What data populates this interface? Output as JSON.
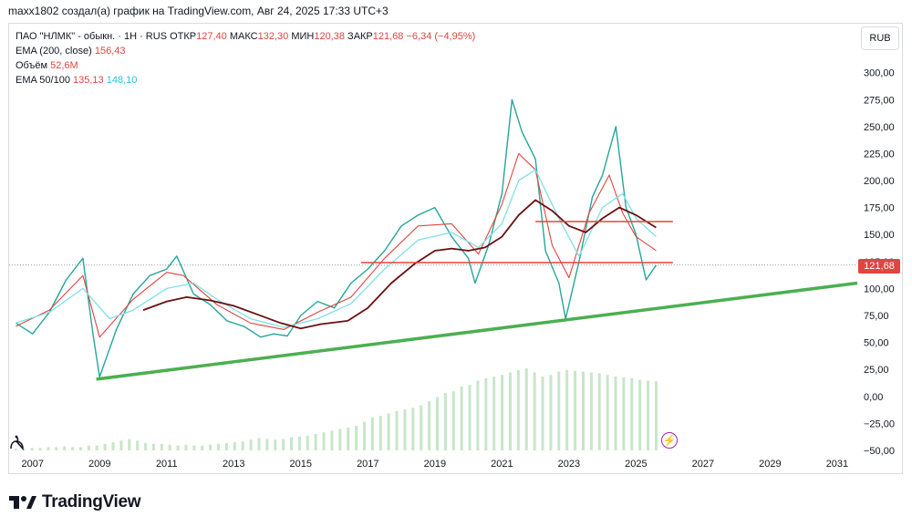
{
  "caption": "maxx1802 создал(а) график на TradingView.com, Авг 24, 2025 17:33 UTC+3",
  "legend": {
    "symbol": "ПАО \"НЛМК\" - обыкн. · 1Н · RUS",
    "open_label": "ОТКР",
    "open_value": "127,40",
    "high_label": "МАКС",
    "high_value": "132,30",
    "low_label": "МИН",
    "low_value": "120,38",
    "close_label": "ЗАКР",
    "close_value": "121,68",
    "change": "−6,34 (−4,95%)",
    "ema200_label": "EMA (200, close)",
    "ema200_value": "156,43",
    "volume_label": "Объём",
    "volume_value": "52,6M",
    "ema50100_label": "EMA 50/100",
    "ema50_value": "135,13",
    "ema100_value": "148,10"
  },
  "currency_button": "RUB",
  "last_price": "121,68",
  "brand": "TradingView",
  "colors": {
    "candle_up": "#26a69a",
    "candle_down": "#ef5350",
    "ema50": "#e0453f",
    "ema100": "#7fe0e8",
    "ema200": "#6b0f12",
    "trendline": "#4caf50",
    "level_line": "#e0453f",
    "volume": "#c8e6c9"
  },
  "chart_data": {
    "type": "line",
    "title": "ПАО \"НЛМК\" - обыкн.",
    "xlabel": "",
    "ylabel": "",
    "x_ticks": [
      "2007",
      "2009",
      "2011",
      "2013",
      "2015",
      "2017",
      "2019",
      "2021",
      "2023",
      "2025",
      "2027",
      "2029",
      "2031"
    ],
    "y_ticks": [
      "300,00",
      "275,00",
      "250,00",
      "225,00",
      "200,00",
      "175,00",
      "150,00",
      "125,00",
      "100,00",
      "75,00",
      "50,00",
      "25,00",
      "0,00",
      "−25,00",
      "−50,00"
    ],
    "ylim": [
      -50,
      320
    ],
    "xlim": [
      2006.3,
      2031.6
    ],
    "series": [
      {
        "name": "ЗАКР",
        "x": [
          2006.5,
          2007.0,
          2007.5,
          2008.0,
          2008.5,
          2008.8,
          2009.0,
          2009.5,
          2010.0,
          2010.5,
          2011.0,
          2011.3,
          2011.8,
          2012.3,
          2012.8,
          2013.3,
          2013.8,
          2014.2,
          2014.6,
          2015.0,
          2015.5,
          2016.0,
          2016.5,
          2017.0,
          2017.5,
          2018.0,
          2018.5,
          2019.0,
          2019.5,
          2020.0,
          2020.2,
          2020.6,
          2021.0,
          2021.3,
          2021.6,
          2022.0,
          2022.3,
          2022.7,
          2022.9,
          2023.3,
          2023.7,
          2024.0,
          2024.4,
          2024.7,
          2025.0,
          2025.3,
          2025.6
        ],
        "y": [
          68,
          58,
          78,
          108,
          128,
          58,
          18,
          62,
          95,
          112,
          118,
          130,
          95,
          85,
          70,
          65,
          55,
          58,
          56,
          75,
          88,
          82,
          105,
          118,
          135,
          158,
          168,
          175,
          148,
          128,
          105,
          140,
          188,
          275,
          245,
          220,
          135,
          105,
          72,
          125,
          185,
          205,
          250,
          175,
          150,
          108,
          121.68
        ]
      },
      {
        "name": "EMA 50",
        "x": [
          2006.5,
          2007.5,
          2008.5,
          2009.0,
          2010.0,
          2011.0,
          2011.5,
          2012.5,
          2013.5,
          2014.5,
          2015.5,
          2016.5,
          2017.5,
          2018.5,
          2019.5,
          2020.3,
          2021.0,
          2021.5,
          2022.0,
          2022.5,
          2023.0,
          2023.6,
          2024.2,
          2024.6,
          2025.0,
          2025.6
        ],
        "y": [
          65,
          80,
          112,
          55,
          90,
          115,
          112,
          85,
          68,
          62,
          78,
          92,
          128,
          158,
          160,
          132,
          178,
          225,
          210,
          140,
          110,
          170,
          205,
          170,
          148,
          135.13
        ]
      },
      {
        "name": "EMA 100",
        "x": [
          2006.5,
          2007.5,
          2008.5,
          2009.3,
          2010.0,
          2011.0,
          2011.8,
          2012.5,
          2013.5,
          2014.5,
          2015.5,
          2016.5,
          2017.5,
          2018.5,
          2019.5,
          2020.3,
          2021.0,
          2021.5,
          2022.0,
          2022.7,
          2023.3,
          2024.0,
          2024.6,
          2025.0,
          2025.6
        ],
        "y": [
          68,
          78,
          100,
          72,
          80,
          100,
          105,
          90,
          72,
          64,
          72,
          86,
          118,
          145,
          152,
          138,
          160,
          200,
          210,
          165,
          130,
          175,
          188,
          165,
          148.1
        ]
      },
      {
        "name": "EMA (200, close)",
        "x": [
          2010.3,
          2011.0,
          2011.6,
          2012.3,
          2013.0,
          2013.7,
          2014.4,
          2015.0,
          2015.6,
          2016.4,
          2017.0,
          2017.7,
          2018.4,
          2019.0,
          2019.5,
          2020.0,
          2020.5,
          2021.0,
          2021.5,
          2022.0,
          2022.5,
          2023.0,
          2023.5,
          2024.0,
          2024.5,
          2025.0,
          2025.6
        ],
        "y": [
          80,
          88,
          92,
          89,
          84,
          76,
          68,
          63,
          67,
          70,
          82,
          105,
          123,
          135,
          137,
          135,
          138,
          148,
          168,
          182,
          172,
          158,
          152,
          165,
          175,
          168,
          156.43
        ]
      },
      {
        "name": "trendline",
        "x": [
          2008.9,
          2031.6
        ],
        "y": [
          16,
          105
        ]
      },
      {
        "name": "level-upper",
        "x": [
          2022.0,
          2026.1
        ],
        "y": [
          162,
          162
        ]
      },
      {
        "name": "level-lower",
        "x": [
          2016.8,
          2026.1
        ],
        "y": [
          124,
          124
        ]
      }
    ],
    "volume": {
      "name": "Объём",
      "x_range": [
        2006.5,
        2025.6
      ],
      "y": [
        2,
        2,
        3,
        3,
        4,
        4,
        5,
        4,
        4,
        6,
        6,
        8,
        10,
        12,
        14,
        12,
        9,
        8,
        8,
        7,
        6,
        7,
        6,
        6,
        7,
        8,
        9,
        10,
        11,
        13,
        15,
        14,
        13,
        14,
        16,
        17,
        18,
        20,
        22,
        24,
        26,
        28,
        30,
        35,
        40,
        42,
        45,
        48,
        50,
        52,
        55,
        60,
        65,
        70,
        72,
        78,
        80,
        85,
        88,
        90,
        92,
        95,
        98,
        100,
        95,
        90,
        92,
        96,
        98,
        97,
        96,
        95,
        94,
        92,
        90,
        89,
        88,
        86,
        85,
        84
      ]
    },
    "legend_placement": "top-left",
    "grid": false
  }
}
